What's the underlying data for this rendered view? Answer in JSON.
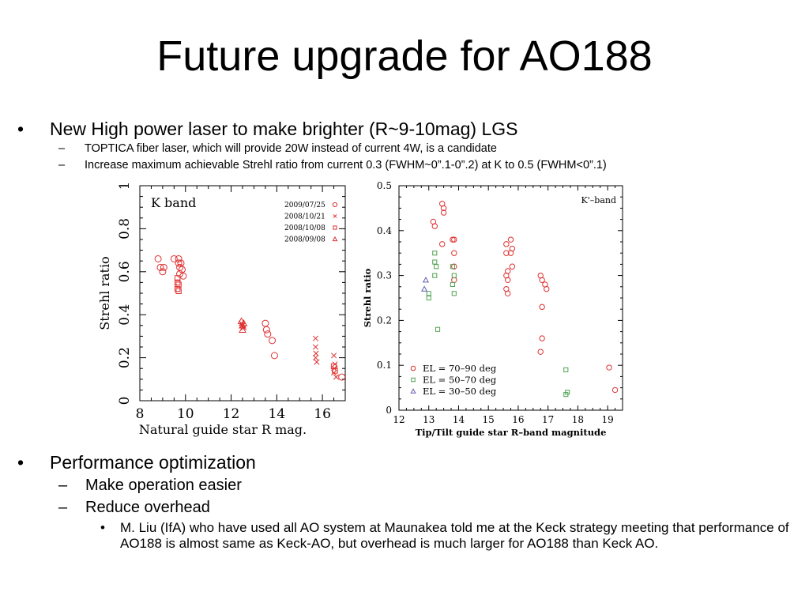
{
  "slide": {
    "title": "Future upgrade for AO188",
    "bullet1": {
      "marker": "•",
      "text": "New High power laser to make brighter (R~9-10mag) LGS",
      "subs": [
        {
          "marker": "–",
          "text": "TOPTICA fiber laser, which will provide 20W instead of current 4W, is a candidate"
        },
        {
          "marker": "–",
          "text": "Increase maximum achievable Strehl ratio from current 0.3 (FWHM~0”.1-0”.2) at K to 0.5 (FWHM<0”.1)"
        }
      ]
    },
    "bullet2": {
      "marker": "•",
      "text": "Performance optimization",
      "subs": [
        {
          "marker": "–",
          "text": "Make operation easier"
        },
        {
          "marker": "–",
          "text": "Reduce overhead"
        }
      ],
      "subsub": {
        "marker": "•",
        "text": "M. Liu (IfA) who have used all AO system at Maunakea told me at the Keck strategy meeting that performance of AO188 is almost same as Keck-AO, but overhead is much larger for AO188 than Keck AO."
      }
    }
  },
  "chart_data": [
    {
      "type": "scatter",
      "title": "K band",
      "xlabel": "Natural guide star R mag.",
      "ylabel": "Strehl ratio",
      "xlim": [
        8,
        17
      ],
      "ylim": [
        0,
        1
      ],
      "xticks": [
        8,
        10,
        12,
        14,
        16
      ],
      "yticks": [
        0,
        0.2,
        0.4,
        0.6,
        0.8,
        1
      ],
      "ytick_labels": [
        "0",
        "0.2",
        "0.4",
        "0.6",
        "0.8",
        "1"
      ],
      "color": "#e03030",
      "series": [
        {
          "name": "2009/07/25",
          "marker": "circle",
          "points": [
            [
              8.8,
              0.66
            ],
            [
              8.9,
              0.62
            ],
            [
              9.0,
              0.6
            ],
            [
              9.05,
              0.62
            ],
            [
              9.5,
              0.66
            ],
            [
              9.7,
              0.66
            ],
            [
              9.7,
              0.64
            ],
            [
              9.75,
              0.62
            ],
            [
              9.8,
              0.64
            ],
            [
              9.75,
              0.59
            ],
            [
              9.85,
              0.61
            ],
            [
              9.9,
              0.58
            ],
            [
              13.5,
              0.36
            ],
            [
              13.55,
              0.33
            ],
            [
              13.6,
              0.31
            ],
            [
              13.8,
              0.28
            ],
            [
              13.9,
              0.21
            ],
            [
              16.85,
              0.11
            ]
          ]
        },
        {
          "name": "2008/10/21",
          "marker": "x",
          "points": [
            [
              12.45,
              0.36
            ],
            [
              12.5,
              0.35
            ],
            [
              12.55,
              0.34
            ],
            [
              15.7,
              0.29
            ],
            [
              15.7,
              0.25
            ],
            [
              15.72,
              0.22
            ],
            [
              15.7,
              0.2
            ],
            [
              15.75,
              0.18
            ],
            [
              16.5,
              0.21
            ],
            [
              16.55,
              0.17
            ],
            [
              16.52,
              0.15
            ],
            [
              16.5,
              0.13
            ],
            [
              16.6,
              0.11
            ]
          ]
        },
        {
          "name": "2008/10/08",
          "marker": "square",
          "points": [
            [
              9.65,
              0.57
            ],
            [
              9.65,
              0.55
            ],
            [
              9.7,
              0.54
            ],
            [
              9.65,
              0.52
            ],
            [
              9.7,
              0.51
            ],
            [
              16.5,
              0.16
            ],
            [
              16.55,
              0.14
            ]
          ]
        },
        {
          "name": "2008/09/08",
          "marker": "triangle",
          "points": [
            [
              12.45,
              0.37
            ],
            [
              12.5,
              0.35
            ],
            [
              12.5,
              0.33
            ],
            [
              12.55,
              0.36
            ]
          ]
        }
      ]
    },
    {
      "type": "scatter",
      "title": "K'–band",
      "xlabel": "Tip/Tilt guide star R–band magnitude",
      "ylabel": "Strehl ratio",
      "xlim": [
        12,
        19.5
      ],
      "ylim": [
        0,
        0.5
      ],
      "xticks": [
        12,
        13,
        14,
        15,
        16,
        17,
        18,
        19
      ],
      "yticks": [
        0,
        0.1,
        0.2,
        0.3,
        0.4,
        0.5
      ],
      "ytick_labels": [
        "0",
        "0.1",
        "0.2",
        "0.3",
        "0.4",
        "0.5"
      ],
      "series": [
        {
          "name": "EL = 70–90 deg",
          "marker": "circle",
          "color": "#e03030",
          "points": [
            [
              13.15,
              0.42
            ],
            [
              13.2,
              0.41
            ],
            [
              13.45,
              0.46
            ],
            [
              13.5,
              0.45
            ],
            [
              13.5,
              0.44
            ],
            [
              13.45,
              0.37
            ],
            [
              13.8,
              0.38
            ],
            [
              13.85,
              0.38
            ],
            [
              13.85,
              0.35
            ],
            [
              13.85,
              0.32
            ],
            [
              13.85,
              0.29
            ],
            [
              15.6,
              0.37
            ],
            [
              15.6,
              0.35
            ],
            [
              15.65,
              0.31
            ],
            [
              15.6,
              0.3
            ],
            [
              15.65,
              0.29
            ],
            [
              15.6,
              0.27
            ],
            [
              15.65,
              0.26
            ],
            [
              15.75,
              0.38
            ],
            [
              15.8,
              0.36
            ],
            [
              15.75,
              0.35
            ],
            [
              15.8,
              0.32
            ],
            [
              16.75,
              0.3
            ],
            [
              16.8,
              0.29
            ],
            [
              16.9,
              0.28
            ],
            [
              16.95,
              0.27
            ],
            [
              16.8,
              0.23
            ],
            [
              16.8,
              0.16
            ],
            [
              16.75,
              0.13
            ],
            [
              19.05,
              0.095
            ],
            [
              19.25,
              0.045
            ]
          ]
        },
        {
          "name": "EL = 50–70 deg",
          "marker": "square",
          "color": "#50a050",
          "points": [
            [
              13.0,
              0.26
            ],
            [
              13.0,
              0.25
            ],
            [
              13.2,
              0.35
            ],
            [
              13.2,
              0.33
            ],
            [
              13.25,
              0.32
            ],
            [
              13.2,
              0.3
            ],
            [
              13.3,
              0.18
            ],
            [
              13.8,
              0.32
            ],
            [
              13.85,
              0.3
            ],
            [
              13.8,
              0.28
            ],
            [
              13.85,
              0.26
            ],
            [
              17.6,
              0.09
            ],
            [
              17.65,
              0.04
            ],
            [
              17.6,
              0.035
            ]
          ]
        },
        {
          "name": "EL = 30–50 deg",
          "marker": "triangle",
          "color": "#6060b0",
          "points": [
            [
              12.9,
              0.29
            ],
            [
              12.85,
              0.27
            ]
          ]
        }
      ]
    }
  ]
}
